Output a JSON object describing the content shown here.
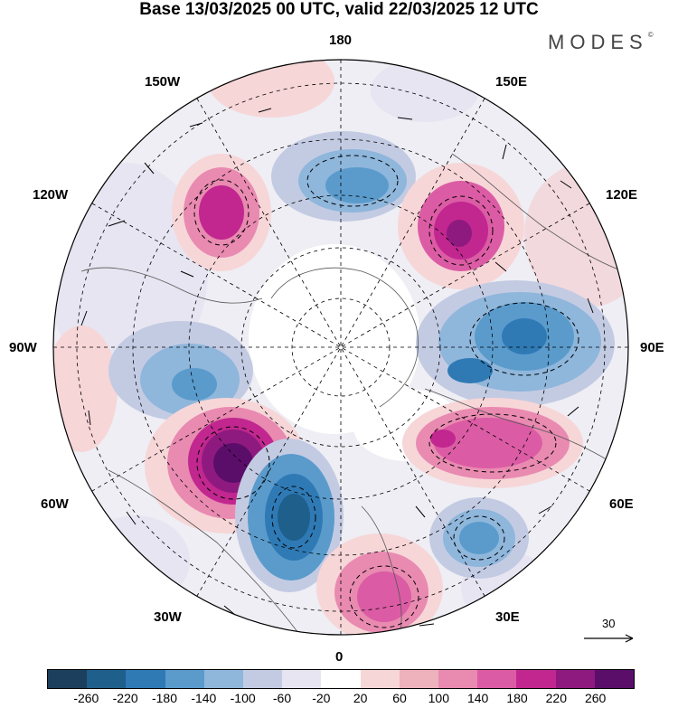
{
  "header": {
    "title": "Base 13/03/2025 00 UTC, valid 22/03/2025 12 UTC",
    "brand": "MODES"
  },
  "map_labels": {
    "top": "180",
    "bottom": "0",
    "left": "90W",
    "right": "90E",
    "upper_left_a": "150W",
    "upper_left_b": "120W",
    "upper_right_a": "150E",
    "upper_right_b": "120E",
    "lower_left_a": "60W",
    "lower_left_b": "30W",
    "lower_right_a": "60E",
    "lower_right_b": "30E"
  },
  "colorbar": {
    "colors": [
      "#1c3f5e",
      "#1f5f8b",
      "#2f7ab5",
      "#5a9bcc",
      "#8fb6db",
      "#c3cbe3",
      "#e6e5f1",
      "#ffffff",
      "#f7d6d8",
      "#eeb2bd",
      "#e98ab1",
      "#db5ca4",
      "#c1278f",
      "#8f1a7f",
      "#5a0e6a"
    ],
    "tick_labels": [
      "-260",
      "-220",
      "-180",
      "-140",
      "-100",
      "-60",
      "-20",
      "20",
      "60",
      "100",
      "140",
      "180",
      "220",
      "260"
    ]
  },
  "reference_vector": {
    "label": "30"
  }
}
